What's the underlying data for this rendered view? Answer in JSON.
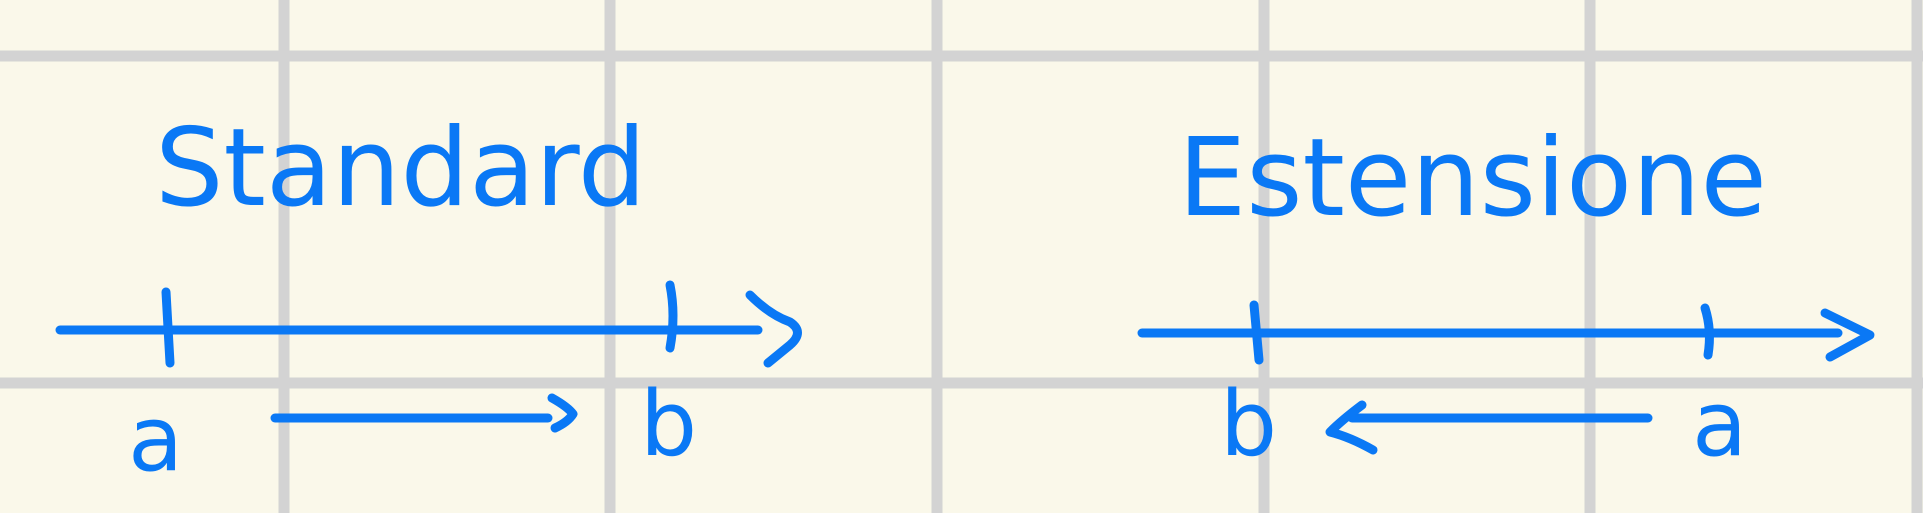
{
  "colors": {
    "background": "#faf8ea",
    "grid": "#d3d3d3",
    "ink": "#0a78f5"
  },
  "panels": {
    "standard": {
      "title": "Standard",
      "left_label": "a",
      "right_label": "b"
    },
    "extension": {
      "title": "Estensione",
      "left_label": "b",
      "right_label": "a"
    }
  }
}
